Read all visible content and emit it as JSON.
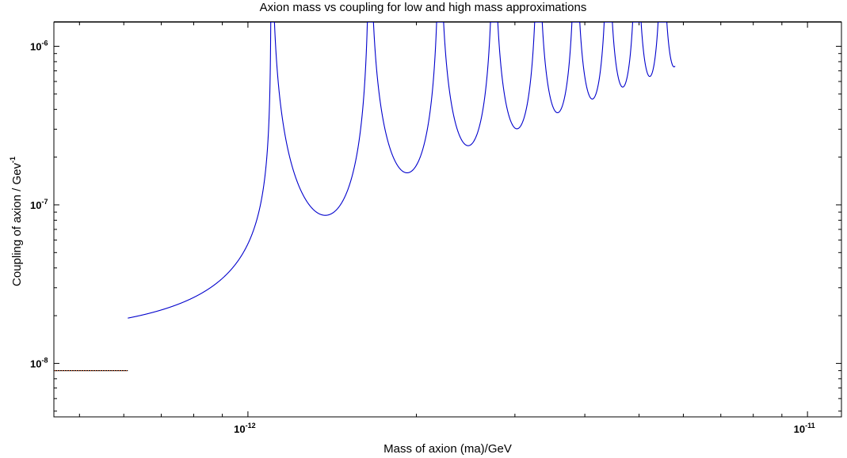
{
  "chart_data": {
    "type": "line",
    "title": "Axion mass vs coupling for low and high mass approximations",
    "xlabel": "Mass of axion (ma)/GeV",
    "ylabel_main": "Coupling of axion / Gev",
    "ylabel_sup": "-1",
    "xscale": "log",
    "yscale": "log",
    "xlim": [
      4.5e-13,
      1.15e-11
    ],
    "ylim": [
      4.6e-09,
      1.42e-06
    ],
    "x_ticks": [
      {
        "value": 1e-12,
        "base": "10",
        "exp": "-12"
      },
      {
        "value": 1e-11,
        "base": "10",
        "exp": "-11"
      }
    ],
    "y_ticks": [
      {
        "value": 1e-08,
        "base": "10",
        "exp": "-8"
      },
      {
        "value": 1e-07,
        "base": "10",
        "exp": "-7"
      },
      {
        "value": 1e-06,
        "base": "10",
        "exp": "-6"
      }
    ],
    "grid": false,
    "series": [
      {
        "color": "#e8541c",
        "style": "dotted",
        "x": [
          4.5e-13,
          6.1e-13
        ],
        "y": [
          9e-09,
          9e-09
        ]
      },
      {
        "color": "#0000cc",
        "style": "solid",
        "model": {
          "x_start": 6.1e-13,
          "x_end": 5.8e-12,
          "first_resonance": 1.1e-12,
          "resonance_spacing": 5.5e-13,
          "low_mass_coupling": 1.93e-08
        },
        "minima": [
          {
            "x": 1.35e-12,
            "y": 8.3e-08
          },
          {
            "x": 1.8e-12,
            "y": 1.42e-07
          },
          {
            "x": 2.2e-12,
            "y": 2e-07
          },
          {
            "x": 2.65e-12,
            "y": 2.6e-07
          },
          {
            "x": 3.1e-12,
            "y": 3.1e-07
          },
          {
            "x": 3.5e-12,
            "y": 3.7e-07
          },
          {
            "x": 3.9e-12,
            "y": 4.3e-07
          }
        ]
      }
    ]
  }
}
